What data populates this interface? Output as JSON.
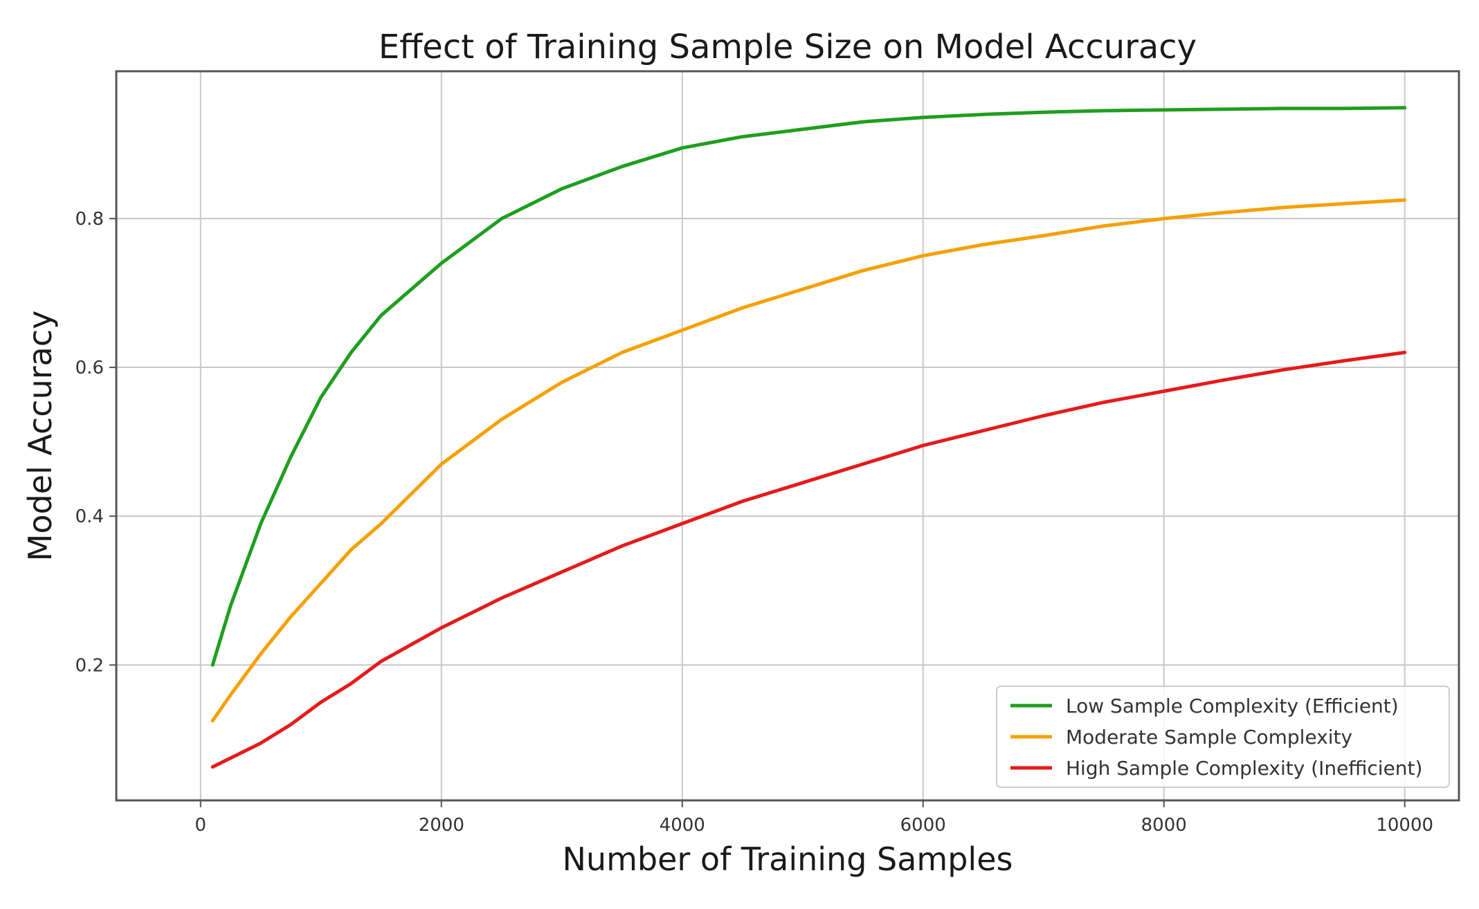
{
  "chart_data": {
    "type": "line",
    "title": "Effect of Training Sample Size on Model Accuracy",
    "xlabel": "Number of Training Samples",
    "ylabel": "Model Accuracy",
    "xlim": [
      -700,
      10450
    ],
    "ylim": [
      0.018,
      0.998
    ],
    "xticks": [
      0,
      2000,
      4000,
      6000,
      8000,
      10000
    ],
    "xtick_labels": [
      "0",
      "2000",
      "4000",
      "6000",
      "8000",
      "10000"
    ],
    "yticks": [
      0.2,
      0.4,
      0.6,
      0.8
    ],
    "ytick_labels": [
      "0.2",
      "0.4",
      "0.6",
      "0.8"
    ],
    "grid": true,
    "legend_position": "lower-right",
    "x": [
      100,
      250,
      500,
      750,
      1000,
      1250,
      1500,
      2000,
      2500,
      3000,
      3500,
      4000,
      4500,
      5000,
      5500,
      6000,
      6500,
      7000,
      7500,
      8000,
      8500,
      9000,
      9500,
      10000
    ],
    "series": [
      {
        "name": "Low Sample Complexity (Efficient)",
        "color": "#1f9e1f",
        "values": [
          0.2,
          0.28,
          0.39,
          0.48,
          0.56,
          0.62,
          0.67,
          0.74,
          0.8,
          0.84,
          0.87,
          0.895,
          0.91,
          0.92,
          0.93,
          0.936,
          0.94,
          0.943,
          0.945,
          0.946,
          0.947,
          0.948,
          0.948,
          0.949
        ]
      },
      {
        "name": "Moderate Sample Complexity",
        "color": "#f5a000",
        "values": [
          0.125,
          0.16,
          0.215,
          0.265,
          0.31,
          0.355,
          0.39,
          0.47,
          0.53,
          0.58,
          0.62,
          0.65,
          0.68,
          0.705,
          0.73,
          0.75,
          0.765,
          0.777,
          0.79,
          0.8,
          0.808,
          0.815,
          0.82,
          0.825
        ]
      },
      {
        "name": "High Sample Complexity (Inefficient)",
        "color": "#e51b1b",
        "values": [
          0.063,
          0.075,
          0.095,
          0.12,
          0.15,
          0.175,
          0.205,
          0.25,
          0.29,
          0.325,
          0.36,
          0.39,
          0.42,
          0.445,
          0.47,
          0.495,
          0.515,
          0.535,
          0.553,
          0.568,
          0.583,
          0.597,
          0.609,
          0.62
        ]
      }
    ]
  }
}
